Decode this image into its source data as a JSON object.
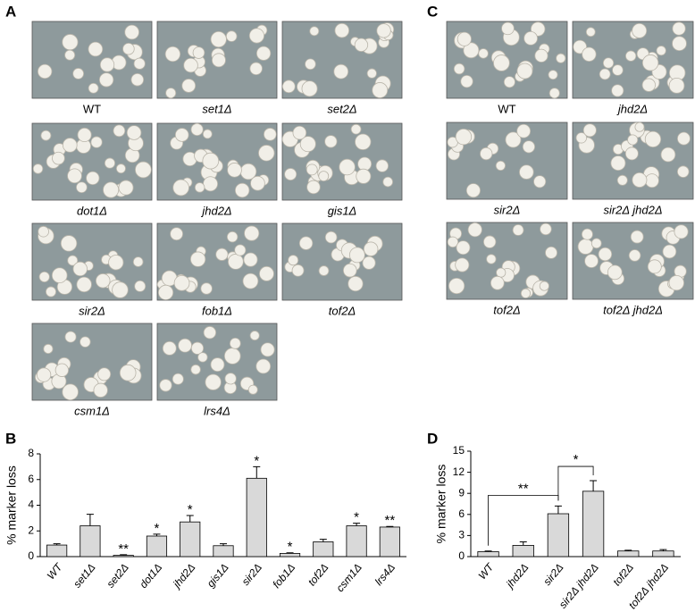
{
  "panel_a": {
    "letter": "A",
    "labels": [
      "WT",
      "set1Δ",
      "set2Δ",
      "dot1Δ",
      "jhd2Δ",
      "gis1Δ",
      "sir2Δ",
      "fob1Δ",
      "tof2Δ",
      "csm1Δ",
      "lrs4Δ"
    ]
  },
  "panel_c": {
    "letter": "C",
    "labels": [
      "WT",
      "jhd2Δ",
      "sir2Δ",
      "sir2Δ jhd2Δ",
      "tof2Δ",
      "tof2Δ jhd2Δ"
    ]
  },
  "chart_data": [
    {
      "panel": "B",
      "type": "bar",
      "ylabel": "% marker loss",
      "color": "#d9d9d9",
      "categories": [
        "WT",
        "set1Δ",
        "set2Δ",
        "dot1Δ",
        "jhd2Δ",
        "gis1Δ",
        "sir2Δ",
        "fob1Δ",
        "tof2Δ",
        "csm1Δ",
        "lrs4Δ"
      ],
      "values": [
        0.9,
        2.4,
        0.1,
        1.6,
        2.7,
        0.85,
        6.1,
        0.25,
        1.15,
        2.4,
        2.3
      ],
      "errors": [
        0.1,
        0.9,
        0.05,
        0.15,
        0.5,
        0.15,
        0.9,
        0.05,
        0.2,
        0.2,
        0.05
      ],
      "significance": [
        null,
        null,
        "**",
        "*",
        "*",
        null,
        "*",
        "*",
        null,
        "*",
        "**"
      ],
      "ylim": [
        0,
        8
      ],
      "yticks": [
        0,
        2,
        4,
        6,
        8
      ]
    },
    {
      "panel": "D",
      "type": "bar",
      "ylabel": "% marker loss",
      "color": "#d9d9d9",
      "categories": [
        "WT",
        "jhd2Δ",
        "sir2Δ",
        "sir2Δ jhd2Δ",
        "tof2Δ",
        "tof2Δ jhd2Δ"
      ],
      "values": [
        0.7,
        1.6,
        6.1,
        9.3,
        0.8,
        0.8
      ],
      "errors": [
        0.1,
        0.5,
        1.1,
        1.5,
        0.1,
        0.2
      ],
      "comparisons": [
        {
          "from": "WT",
          "to": "sir2Δ",
          "label": "**"
        },
        {
          "from": "sir2Δ",
          "to": "sir2Δ jhd2Δ",
          "label": "*"
        }
      ],
      "ylim": [
        0,
        15
      ],
      "yticks": [
        0,
        3,
        6,
        9,
        12,
        15
      ]
    }
  ]
}
